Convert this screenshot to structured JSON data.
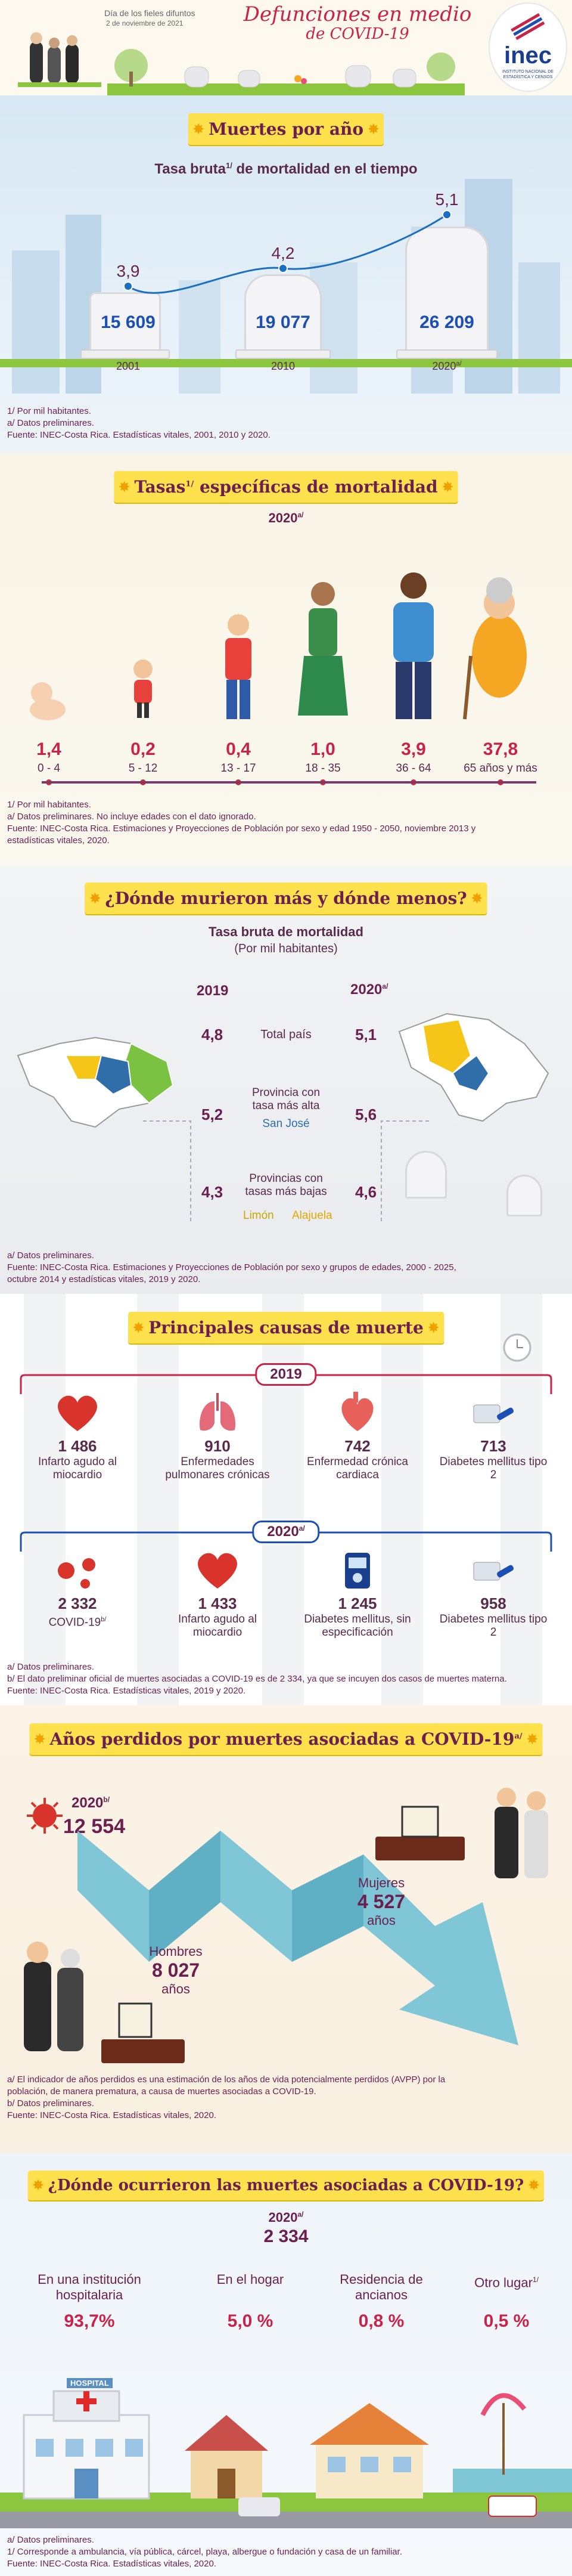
{
  "header": {
    "occasion": "Día de los fieles difuntos",
    "date": "2 de noviembre de 2021",
    "title_line1": "Defunciones en medio",
    "title_line2": "de COVID-19",
    "logo_text": "inec",
    "logo_subtext": "INSTITUTO NACIONAL DE ESTADÍSTICA Y CENSOS"
  },
  "s1": {
    "banner": "Muertes por año",
    "chart_title": "Tasa bruta",
    "chart_title_sup": "1/",
    "chart_title_rest": " de mortalidad en el tiempo",
    "notes": [
      "1/ Por mil habitantes.",
      "a/ Datos preliminares.",
      "Fuente: INEC-Costa Rica. Estadísticas vitales, 2001, 2010 y 2020."
    ]
  },
  "chart_data": {
    "type": "line",
    "x": [
      "2001",
      "2010",
      "2020a/"
    ],
    "series": [
      {
        "values": [
          3.9,
          4.2,
          5.1
        ]
      }
    ],
    "value_labels": [
      "3,9",
      "4,2",
      "5,1"
    ],
    "deaths_labels": [
      "15 609",
      "19 077",
      "26 209"
    ],
    "x_labels": [
      "2001",
      "2010",
      "2020"
    ],
    "x_sup": [
      "",
      "",
      "a/"
    ]
  },
  "s2": {
    "banner": "Tasas",
    "banner_sup": "1/",
    "banner_rest": " específicas de mortalidad",
    "year": "2020",
    "year_sup": "a/",
    "groups": [
      {
        "rate": "1,4",
        "age": "0 - 4"
      },
      {
        "rate": "0,2",
        "age": "5 - 12"
      },
      {
        "rate": "0,4",
        "age": "13 - 17"
      },
      {
        "rate": "1,0",
        "age": "18 - 35"
      },
      {
        "rate": "3,9",
        "age": "36 - 64"
      },
      {
        "rate": "37,8",
        "age": "65 años y más"
      }
    ],
    "notes": [
      "1/ Por mil habitantes.",
      "a/ Datos preliminares. No incluye edades con el dato ignorado.",
      "Fuente: INEC-Costa Rica. Estimaciones y Proyecciones de Población por sexo y edad 1950 - 2050, noviembre 2013 y",
      "estadísticas vitales, 2020."
    ]
  },
  "s3": {
    "banner": "¿Dónde murieron más y dónde menos?",
    "subtitle": "Tasa bruta de mortalidad",
    "subtitle2": "(Por mil habitantes)",
    "year_left": "2019",
    "year_right": "2020",
    "year_right_sup": "a/",
    "rows": [
      {
        "left": "4,8",
        "label": "Total país",
        "right": "5,1"
      },
      {
        "left": "5,2",
        "label": "Provincia con tasa más alta",
        "right": "5,6"
      },
      {
        "left": "4,3",
        "label": "Provincias con tasas más bajas",
        "right": "4,6"
      }
    ],
    "highest": "San José",
    "lowest_left": "Limón",
    "lowest_right": "Alajuela",
    "colors": {
      "san_jose": "#2f6ea8",
      "limon": "#7cc242",
      "alajuela": "#f5c518"
    },
    "notes": [
      "a/ Datos preliminares.",
      "Fuente: INEC-Costa Rica. Estimaciones y Proyecciones de Población por sexo y grupos de edades, 2000 - 2025,",
      "octubre 2014 y estadísticas vitales, 2019 y 2020."
    ]
  },
  "s4": {
    "banner": "Principales causas de muerte",
    "year1": "2019",
    "year2": "2020",
    "year2_sup": "a/",
    "causes2019": [
      {
        "num": "1 486",
        "label": "Infarto agudo al miocardio"
      },
      {
        "num": "910",
        "label": "Enfermedades pulmonares crónicas"
      },
      {
        "num": "742",
        "label": "Enfermedad crónica cardiaca"
      },
      {
        "num": "713",
        "label": "Diabetes mellitus tipo 2"
      }
    ],
    "causes2020": [
      {
        "num": "2 332",
        "label": "COVID-19",
        "sup": "b/"
      },
      {
        "num": "1 433",
        "label": "Infarto agudo al miocardio"
      },
      {
        "num": "1 245",
        "label": "Diabetes mellitus, sin especificación"
      },
      {
        "num": "958",
        "label": "Diabetes mellitus tipo 2"
      }
    ],
    "notes": [
      "a/ Datos preliminares.",
      "b/ El dato preliminar oficial de muertes asociadas a COVID-19 es de 2 334, ya que se incuyen dos casos de muertes materna.",
      "Fuente: INEC-Costa Rica. Estadísticas vitales, 2019 y 2020."
    ]
  },
  "s5": {
    "banner": "Años perdidos por muertes asociadas a COVID-19",
    "banner_sup": "a/",
    "year": "2020",
    "year_sup": "b/",
    "total": "12 554",
    "women_label": "Mujeres",
    "women_num": "4 527",
    "women_unit": "años",
    "men_label": "Hombres",
    "men_num": "8 027",
    "men_unit": "años",
    "notes": [
      "a/ El indicador de años perdidos es una estimación de los años de vida potencialmente perdidos (AVPP) por la",
      "población, de manera prematura, a causa de muertes asociadas a COVID-19.",
      "b/ Datos preliminares.",
      "Fuente: INEC-Costa Rica. Estadísticas vitales, 2020."
    ]
  },
  "s6": {
    "banner": "¿Dónde ocurrieron las muertes asociadas a COVID-19?",
    "year": "2020",
    "year_sup": "a/",
    "total": "2 334",
    "places": [
      {
        "label": "En una institución hospitalaria",
        "pct": "93,7%"
      },
      {
        "label": "En el hogar",
        "pct": "5,0 %"
      },
      {
        "label": "Residencia de ancianos",
        "pct": "0,8 %"
      },
      {
        "label": "Otro lugar",
        "sup": "1/",
        "pct": "0,5 %"
      }
    ],
    "hospital_sign": "HOSPITAL",
    "notes": [
      "a/ Datos preliminares.",
      "1/ Corresponde a ambulancia, vía pública, cárcel, playa, albergue o fundación y casa de un familiar.",
      "Fuente: INEC-Costa Rica. Estadísticas vitales, 2020."
    ]
  }
}
